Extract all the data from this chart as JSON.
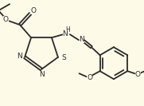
{
  "bg_color": "#fefae8",
  "line_color": "#2a2a2a",
  "line_width": 1.3,
  "font_size": 6.5,
  "bold_atoms": [
    "N",
    "S",
    "O",
    "H"
  ],
  "figw": 1.81,
  "figh": 1.33,
  "dpi": 100
}
